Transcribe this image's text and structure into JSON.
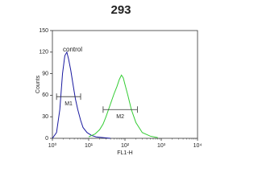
{
  "chart_data": {
    "type": "line",
    "title": "293",
    "x_label": "FL1-H",
    "y_label": "Counts",
    "xlim": [
      1,
      10000
    ],
    "xscale": "log",
    "xticks": [
      {
        "value": 1,
        "label": "10⁰"
      },
      {
        "value": 10,
        "label": "10¹"
      },
      {
        "value": 100,
        "label": "10²"
      },
      {
        "value": 1000,
        "label": "10³"
      },
      {
        "value": 10000,
        "label": "10⁴"
      }
    ],
    "ylim": [
      0,
      150
    ],
    "yticks": [
      0,
      30,
      60,
      90,
      120,
      150
    ],
    "series": [
      {
        "name": "control",
        "color": "#1a1aa0",
        "x": [
          1,
          1.3,
          1.6,
          1.9,
          2.2,
          2.5,
          2.8,
          3.2,
          3.7,
          4.3,
          5,
          6,
          7,
          9,
          12,
          16,
          25,
          40
        ],
        "values": [
          0,
          8,
          40,
          90,
          115,
          120,
          110,
          95,
          75,
          55,
          40,
          25,
          15,
          8,
          4,
          2,
          1,
          0
        ]
      },
      {
        "color": "#33cc33",
        "x": [
          10,
          15,
          20,
          25,
          30,
          40,
          50,
          60,
          70,
          80,
          90,
          100,
          120,
          150,
          200,
          300,
          500,
          800
        ],
        "values": [
          2,
          6,
          12,
          20,
          30,
          48,
          62,
          72,
          82,
          88,
          84,
          75,
          60,
          40,
          22,
          8,
          3,
          1
        ]
      }
    ],
    "markers": [
      {
        "label": "M1",
        "x": [
          1.3,
          6
        ],
        "y": 58
      },
      {
        "label": "M2",
        "x": [
          25,
          220
        ],
        "y": 40
      }
    ]
  }
}
